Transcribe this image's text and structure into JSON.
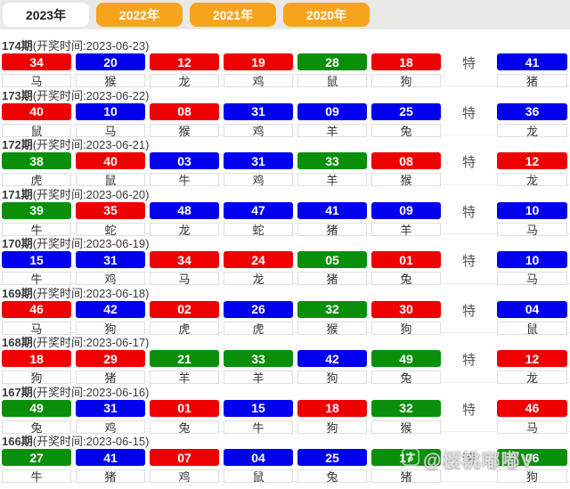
{
  "tabs": [
    {
      "label": "2023年",
      "active": true
    },
    {
      "label": "2022年",
      "active": false
    },
    {
      "label": "2021年",
      "active": false
    },
    {
      "label": "2020年",
      "active": false
    }
  ],
  "special_label": "特",
  "watermark": {
    "text": "@樱桃嘟嘟V"
  },
  "colors": {
    "red": "#ee0000",
    "blue": "#0000ee",
    "green": "#0a8f0a",
    "orange": "#f7a41d"
  },
  "draws": [
    {
      "issue": "174期",
      "time_label": "(开奖时间:2023-06-23)",
      "balls": [
        {
          "num": "34",
          "color": "red",
          "zodiac": "马"
        },
        {
          "num": "20",
          "color": "blue",
          "zodiac": "猴"
        },
        {
          "num": "12",
          "color": "red",
          "zodiac": "龙"
        },
        {
          "num": "19",
          "color": "red",
          "zodiac": "鸡"
        },
        {
          "num": "28",
          "color": "green",
          "zodiac": "鼠"
        },
        {
          "num": "18",
          "color": "red",
          "zodiac": "狗"
        }
      ],
      "special": {
        "num": "41",
        "color": "blue",
        "zodiac": "猪"
      }
    },
    {
      "issue": "173期",
      "time_label": "(开奖时间:2023-06-22)",
      "balls": [
        {
          "num": "40",
          "color": "red",
          "zodiac": "鼠"
        },
        {
          "num": "10",
          "color": "blue",
          "zodiac": "马"
        },
        {
          "num": "08",
          "color": "red",
          "zodiac": "猴"
        },
        {
          "num": "31",
          "color": "blue",
          "zodiac": "鸡"
        },
        {
          "num": "09",
          "color": "blue",
          "zodiac": "羊"
        },
        {
          "num": "25",
          "color": "blue",
          "zodiac": "兔"
        }
      ],
      "special": {
        "num": "36",
        "color": "blue",
        "zodiac": "龙"
      }
    },
    {
      "issue": "172期",
      "time_label": "(开奖时间:2023-06-21)",
      "balls": [
        {
          "num": "38",
          "color": "green",
          "zodiac": "虎"
        },
        {
          "num": "40",
          "color": "red",
          "zodiac": "鼠"
        },
        {
          "num": "03",
          "color": "blue",
          "zodiac": "牛"
        },
        {
          "num": "31",
          "color": "blue",
          "zodiac": "鸡"
        },
        {
          "num": "33",
          "color": "green",
          "zodiac": "羊"
        },
        {
          "num": "08",
          "color": "red",
          "zodiac": "猴"
        }
      ],
      "special": {
        "num": "12",
        "color": "red",
        "zodiac": "龙"
      }
    },
    {
      "issue": "171期",
      "time_label": "(开奖时间:2023-06-20)",
      "balls": [
        {
          "num": "39",
          "color": "green",
          "zodiac": "牛"
        },
        {
          "num": "35",
          "color": "red",
          "zodiac": "蛇"
        },
        {
          "num": "48",
          "color": "blue",
          "zodiac": "龙"
        },
        {
          "num": "47",
          "color": "blue",
          "zodiac": "蛇"
        },
        {
          "num": "41",
          "color": "blue",
          "zodiac": "猪"
        },
        {
          "num": "09",
          "color": "blue",
          "zodiac": "羊"
        }
      ],
      "special": {
        "num": "10",
        "color": "blue",
        "zodiac": "马"
      }
    },
    {
      "issue": "170期",
      "time_label": "(开奖时间:2023-06-19)",
      "balls": [
        {
          "num": "15",
          "color": "blue",
          "zodiac": "牛"
        },
        {
          "num": "31",
          "color": "blue",
          "zodiac": "鸡"
        },
        {
          "num": "34",
          "color": "red",
          "zodiac": "马"
        },
        {
          "num": "24",
          "color": "red",
          "zodiac": "龙"
        },
        {
          "num": "05",
          "color": "green",
          "zodiac": "猪"
        },
        {
          "num": "01",
          "color": "red",
          "zodiac": "兔"
        }
      ],
      "special": {
        "num": "10",
        "color": "blue",
        "zodiac": "马"
      }
    },
    {
      "issue": "169期",
      "time_label": "(开奖时间:2023-06-18)",
      "balls": [
        {
          "num": "46",
          "color": "red",
          "zodiac": "马"
        },
        {
          "num": "42",
          "color": "blue",
          "zodiac": "狗"
        },
        {
          "num": "02",
          "color": "red",
          "zodiac": "虎"
        },
        {
          "num": "26",
          "color": "blue",
          "zodiac": "虎"
        },
        {
          "num": "32",
          "color": "green",
          "zodiac": "猴"
        },
        {
          "num": "30",
          "color": "red",
          "zodiac": "狗"
        }
      ],
      "special": {
        "num": "04",
        "color": "blue",
        "zodiac": "鼠"
      }
    },
    {
      "issue": "168期",
      "time_label": "(开奖时间:2023-06-17)",
      "balls": [
        {
          "num": "18",
          "color": "red",
          "zodiac": "狗"
        },
        {
          "num": "29",
          "color": "red",
          "zodiac": "猪"
        },
        {
          "num": "21",
          "color": "green",
          "zodiac": "羊"
        },
        {
          "num": "33",
          "color": "green",
          "zodiac": "羊"
        },
        {
          "num": "42",
          "color": "blue",
          "zodiac": "狗"
        },
        {
          "num": "49",
          "color": "green",
          "zodiac": "兔"
        }
      ],
      "special": {
        "num": "12",
        "color": "red",
        "zodiac": "龙"
      }
    },
    {
      "issue": "167期",
      "time_label": "(开奖时间:2023-06-16)",
      "balls": [
        {
          "num": "49",
          "color": "green",
          "zodiac": "兔"
        },
        {
          "num": "31",
          "color": "blue",
          "zodiac": "鸡"
        },
        {
          "num": "01",
          "color": "red",
          "zodiac": "兔"
        },
        {
          "num": "15",
          "color": "blue",
          "zodiac": "牛"
        },
        {
          "num": "18",
          "color": "red",
          "zodiac": "狗"
        },
        {
          "num": "32",
          "color": "green",
          "zodiac": "猴"
        }
      ],
      "special": {
        "num": "46",
        "color": "red",
        "zodiac": "马"
      }
    },
    {
      "issue": "166期",
      "time_label": "(开奖时间:2023-06-15)",
      "balls": [
        {
          "num": "27",
          "color": "green",
          "zodiac": "牛"
        },
        {
          "num": "41",
          "color": "blue",
          "zodiac": "猪"
        },
        {
          "num": "07",
          "color": "red",
          "zodiac": "鸡"
        },
        {
          "num": "04",
          "color": "blue",
          "zodiac": "鼠"
        },
        {
          "num": "25",
          "color": "blue",
          "zodiac": "兔"
        },
        {
          "num": "17",
          "color": "green",
          "zodiac": "猪"
        }
      ],
      "special": {
        "num": "06",
        "color": "green",
        "zodiac": "狗"
      }
    }
  ]
}
